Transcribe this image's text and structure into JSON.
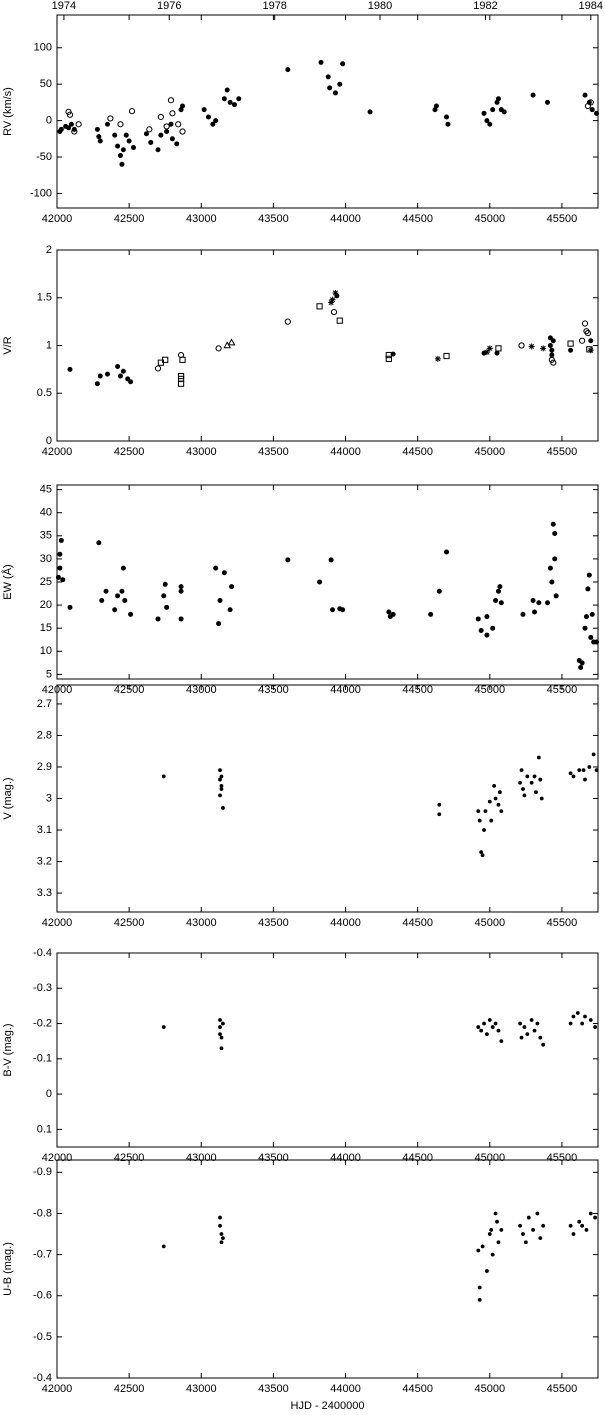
{
  "chart_data": [
    {
      "type": "scatter",
      "ylabel": "RV (km/s)",
      "xlim": [
        42000,
        45750
      ],
      "xticks": [
        42000,
        42500,
        43000,
        43500,
        44000,
        44500,
        45000,
        45500
      ],
      "ylim": [
        -120,
        145
      ],
      "yticks": [
        -100,
        -50,
        0,
        50,
        100
      ],
      "x2lim": [
        42000,
        45750
      ],
      "x2ticks": [
        {
          "value": 42048,
          "label": "1974"
        },
        {
          "value": 42778,
          "label": "1976"
        },
        {
          "value": 43509,
          "label": "1978"
        },
        {
          "value": 44239,
          "label": "1980"
        },
        {
          "value": 44970,
          "label": "1982"
        },
        {
          "value": 45700,
          "label": "1984"
        }
      ],
      "series": [
        {
          "marker": "filled-circle",
          "color": "#000000",
          "x": [
            42020,
            42030,
            42060,
            42080,
            42100,
            42120,
            42280,
            42290,
            42300,
            42350,
            42400,
            42420,
            42440,
            42450,
            42460,
            42480,
            42500,
            42530,
            42620,
            42650,
            42700,
            42720,
            42760,
            42790,
            42800,
            42830,
            42860,
            42870,
            43020,
            43050,
            43080,
            43100,
            43160,
            43180,
            43200,
            43230,
            43260,
            43600,
            43830,
            43880,
            43890,
            43930,
            43960,
            43980,
            44170,
            44620,
            44630,
            44700,
            44710,
            44960,
            44980,
            45000,
            45020,
            45050,
            45060,
            45080,
            45100,
            45300,
            45400,
            45660,
            45690,
            45710,
            45740
          ],
          "values": [
            -15,
            -12,
            -8,
            -10,
            -5,
            -12,
            -12,
            -22,
            -28,
            -5,
            -20,
            -35,
            -48,
            -60,
            -40,
            -20,
            -28,
            -37,
            -18,
            -30,
            -40,
            -20,
            -15,
            -5,
            -25,
            -32,
            15,
            20,
            15,
            5,
            -5,
            0,
            30,
            42,
            25,
            22,
            30,
            70,
            80,
            60,
            45,
            38,
            50,
            78,
            12,
            15,
            20,
            5,
            -5,
            10,
            0,
            -5,
            15,
            25,
            30,
            15,
            12,
            35,
            25,
            35,
            25,
            15,
            10
          ]
        },
        {
          "marker": "open-circle",
          "color": "#000000",
          "x": [
            42080,
            42090,
            42120,
            42150,
            42370,
            42440,
            42520,
            42640,
            42720,
            42760,
            42790,
            42800,
            42840,
            42870,
            45680,
            45700
          ],
          "values": [
            12,
            8,
            -15,
            -5,
            3,
            -5,
            13,
            -12,
            5,
            -8,
            28,
            10,
            -5,
            -15,
            20,
            25
          ]
        }
      ]
    },
    {
      "type": "scatter",
      "ylabel": "V/R",
      "xlim": [
        42000,
        45750
      ],
      "xticks": [
        42000,
        42500,
        43000,
        43500,
        44000,
        44500,
        45000,
        45500
      ],
      "ylim": [
        0,
        2
      ],
      "yticks": [
        0,
        0.5,
        1,
        1.5,
        2
      ],
      "series": [
        {
          "marker": "filled-circle",
          "color": "#000000",
          "x": [
            42090,
            42280,
            42300,
            42350,
            42420,
            42440,
            42460,
            42490,
            42510,
            43940,
            44330,
            44960,
            45050,
            45420,
            45420,
            45430,
            45430,
            45440,
            45560,
            45700
          ],
          "values": [
            0.75,
            0.6,
            0.68,
            0.7,
            0.78,
            0.68,
            0.73,
            0.65,
            0.62,
            1.52,
            0.91,
            0.92,
            0.92,
            1.08,
            1.0,
            0.95,
            0.9,
            1.05,
            0.95,
            1.05
          ]
        },
        {
          "marker": "open-circle",
          "color": "#000000",
          "x": [
            42700,
            42860,
            43120,
            43600,
            43920,
            45220,
            45430,
            45440,
            45640,
            45660,
            45670,
            45680
          ],
          "values": [
            0.76,
            0.9,
            0.97,
            1.25,
            1.35,
            1.0,
            0.85,
            0.82,
            1.05,
            1.23,
            1.15,
            1.13
          ]
        },
        {
          "marker": "open-square",
          "color": "#000000",
          "x": [
            42720,
            42750,
            42860,
            42860,
            42860,
            42870,
            43820,
            43960,
            44300,
            44300,
            44700,
            45060,
            45560,
            45690
          ],
          "values": [
            0.82,
            0.85,
            0.6,
            0.65,
            0.68,
            0.85,
            1.41,
            1.26,
            0.9,
            0.86,
            0.89,
            0.97,
            1.02,
            0.96
          ]
        },
        {
          "marker": "open-triangle",
          "color": "#000000",
          "x": [
            43180,
            43210
          ],
          "values": [
            1.0,
            1.03
          ]
        },
        {
          "marker": "asterisk",
          "color": "#000000",
          "x": [
            43900,
            43910,
            43930,
            44640,
            44980,
            45000,
            45290,
            45370,
            45700
          ],
          "values": [
            1.45,
            1.48,
            1.55,
            0.86,
            0.93,
            0.97,
            0.99,
            0.97,
            0.95
          ]
        }
      ]
    },
    {
      "type": "scatter",
      "ylabel": "EW (Å)",
      "xlim": [
        42000,
        45750
      ],
      "xticks": [
        42000,
        42500,
        43000,
        43500,
        44000,
        44500,
        45000,
        45500
      ],
      "ylim": [
        4,
        46
      ],
      "yticks": [
        5,
        10,
        15,
        20,
        25,
        30,
        35,
        40,
        45
      ],
      "series": [
        {
          "marker": "filled-circle",
          "color": "#000000",
          "x": [
            42010,
            42020,
            42020,
            42030,
            42040,
            42090,
            42290,
            42310,
            42340,
            42400,
            42420,
            42450,
            42460,
            42470,
            42510,
            42700,
            42740,
            42750,
            42760,
            42860,
            42860,
            42860,
            43100,
            43120,
            43130,
            43160,
            43200,
            43210,
            43600,
            43820,
            43900,
            43910,
            43960,
            43980,
            44300,
            44310,
            44330,
            44590,
            44650,
            44700,
            44920,
            44940,
            44980,
            44980,
            45020,
            45040,
            45060,
            45070,
            45080,
            45230,
            45300,
            45310,
            45340,
            45400,
            45420,
            45430,
            45440,
            45450,
            45450,
            45460,
            45620,
            45630,
            45640,
            45660,
            45670,
            45680,
            45690,
            45700,
            45710,
            45720,
            45740
          ],
          "values": [
            26,
            28,
            31,
            34,
            25.5,
            19.5,
            33.5,
            21,
            23,
            19,
            22,
            23,
            28,
            21,
            18,
            17,
            22,
            24.5,
            19.5,
            17,
            23,
            24,
            28,
            16,
            21,
            27,
            19,
            24,
            29.8,
            25,
            29.8,
            19,
            19.2,
            19,
            18.5,
            17.5,
            18,
            18,
            23,
            31.5,
            17,
            14.5,
            13.5,
            17.5,
            15,
            21,
            23,
            24,
            20.5,
            18,
            21,
            18.5,
            20.5,
            20.5,
            28,
            25,
            37.5,
            35.5,
            30,
            22,
            8,
            6.5,
            7.5,
            15,
            17.5,
            23.5,
            26.5,
            13,
            18,
            12,
            12
          ]
        }
      ]
    },
    {
      "type": "scatter",
      "ylabel": "V (mag.)",
      "xlim": [
        42000,
        45750
      ],
      "xticks": [
        42000,
        42500,
        43000,
        43500,
        44000,
        44500,
        45000,
        45500
      ],
      "ylim": [
        3.36,
        2.64
      ],
      "yticks": [
        2.7,
        2.8,
        2.9,
        3,
        3.1,
        3.2,
        3.3
      ],
      "series": [
        {
          "marker": "small-filled-circle",
          "color": "#000000",
          "x": [
            42740,
            43130,
            43130,
            43140,
            43130,
            43150,
            43140,
            43140,
            44650,
            44650,
            44920,
            44930,
            44940,
            44950,
            44960,
            44970,
            45000,
            45010,
            45030,
            45040,
            45060,
            45070,
            45080,
            45210,
            45220,
            45230,
            45240,
            45260,
            45290,
            45310,
            45320,
            45340,
            45350,
            45360,
            45560,
            45580,
            45620,
            45650,
            45660,
            45690,
            45720,
            45740
          ],
          "values": [
            2.93,
            2.91,
            2.94,
            2.97,
            2.99,
            3.03,
            2.96,
            2.93,
            3.02,
            3.05,
            3.04,
            3.07,
            3.17,
            3.18,
            3.1,
            3.04,
            3.01,
            3.07,
            2.96,
            3.0,
            3.02,
            2.98,
            3.04,
            2.95,
            2.91,
            2.97,
            2.99,
            2.93,
            2.95,
            2.93,
            2.98,
            2.87,
            2.94,
            3.0,
            2.92,
            2.93,
            2.91,
            2.91,
            2.94,
            2.9,
            2.86,
            2.91
          ]
        }
      ]
    },
    {
      "type": "scatter",
      "ylabel": "B-V (mag.)",
      "xlim": [
        42000,
        45750
      ],
      "xticks": [
        42000,
        42500,
        43000,
        43500,
        44000,
        44500,
        45000,
        45500
      ],
      "ylim": [
        0.15,
        -0.4
      ],
      "yticks": [
        -0.4,
        -0.3,
        -0.2,
        -0.1,
        0,
        0.1
      ],
      "series": [
        {
          "marker": "small-filled-circle",
          "color": "#000000",
          "x": [
            42740,
            43130,
            43130,
            43140,
            43140,
            43130,
            43150,
            44920,
            44940,
            44960,
            44980,
            45000,
            45020,
            45040,
            45060,
            45080,
            45210,
            45220,
            45240,
            45260,
            45290,
            45310,
            45330,
            45350,
            45370,
            45560,
            45580,
            45610,
            45640,
            45660,
            45700,
            45730
          ],
          "values": [
            -0.19,
            -0.21,
            -0.19,
            -0.16,
            -0.13,
            -0.17,
            -0.2,
            -0.19,
            -0.18,
            -0.2,
            -0.17,
            -0.21,
            -0.19,
            -0.2,
            -0.18,
            -0.15,
            -0.2,
            -0.16,
            -0.19,
            -0.17,
            -0.21,
            -0.18,
            -0.2,
            -0.16,
            -0.14,
            -0.2,
            -0.22,
            -0.23,
            -0.2,
            -0.22,
            -0.21,
            -0.19
          ]
        }
      ]
    },
    {
      "type": "scatter",
      "ylabel": "U-B (mag.)",
      "xlabel": "HJD - 2400000",
      "xlim": [
        42000,
        45750
      ],
      "xticks": [
        42000,
        42500,
        43000,
        43500,
        44000,
        44500,
        45000,
        45500
      ],
      "ylim": [
        -0.4,
        -0.93
      ],
      "yticks": [
        -0.9,
        -0.8,
        -0.7,
        -0.6,
        -0.5,
        -0.4
      ],
      "series": [
        {
          "marker": "small-filled-circle",
          "color": "#000000",
          "x": [
            42740,
            43130,
            43140,
            43140,
            43130,
            43150,
            44920,
            44930,
            44930,
            44950,
            44980,
            45000,
            45010,
            45020,
            45040,
            45050,
            45060,
            45080,
            45210,
            45230,
            45250,
            45270,
            45300,
            45330,
            45350,
            45370,
            45560,
            45580,
            45620,
            45640,
            45670,
            45700,
            45730
          ],
          "values": [
            -0.72,
            -0.79,
            -0.75,
            -0.73,
            -0.77,
            -0.74,
            -0.71,
            -0.62,
            -0.59,
            -0.72,
            -0.66,
            -0.75,
            -0.76,
            -0.7,
            -0.8,
            -0.78,
            -0.73,
            -0.76,
            -0.77,
            -0.75,
            -0.73,
            -0.79,
            -0.76,
            -0.8,
            -0.74,
            -0.77,
            -0.77,
            -0.75,
            -0.78,
            -0.77,
            -0.76,
            -0.8,
            -0.79
          ]
        }
      ]
    }
  ]
}
